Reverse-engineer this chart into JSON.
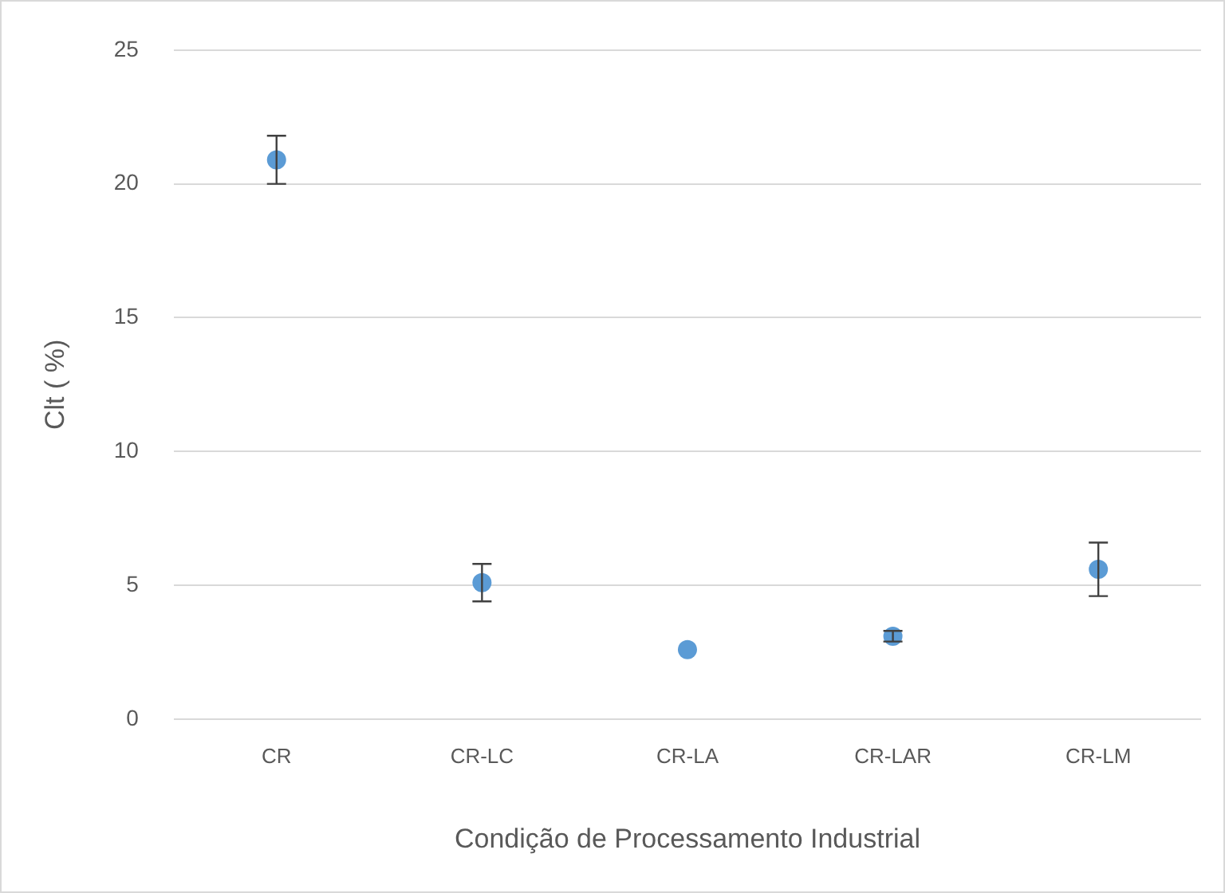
{
  "chart_data": {
    "type": "scatter",
    "xlabel": "Condição de Processamento Industrial",
    "ylabel": "Clt ( %)",
    "categories": [
      "CR",
      "CR-LC",
      "CR-LA",
      "CR-LAR",
      "CR-LM"
    ],
    "series": [
      {
        "color": "#5b9bd5",
        "values": [
          20.9,
          5.1,
          2.6,
          3.1,
          5.6
        ],
        "errors": [
          0.9,
          0.7,
          null,
          0.2,
          1.0
        ]
      }
    ],
    "ylim": [
      0,
      25
    ],
    "yticks": [
      0,
      5,
      10,
      15,
      20,
      25
    ],
    "grid": "y",
    "legend": false,
    "marker": "circle"
  }
}
